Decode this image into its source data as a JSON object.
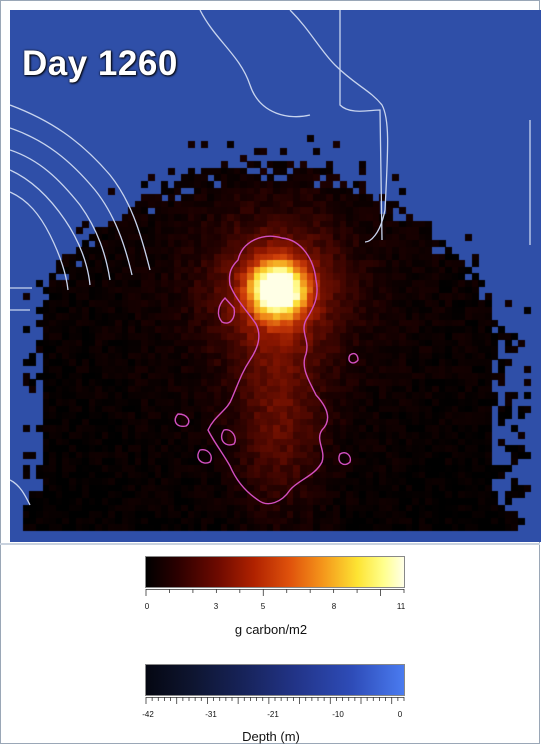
{
  "map": {
    "day_label": "Day 1260",
    "colors": {
      "water": "#2f4fa8",
      "bathymetry_contour": "#c8d4ee",
      "carbon_contour": "#d24fc0"
    }
  },
  "carbon_legend": {
    "title": "g carbon/m2",
    "ticks": [
      "0",
      "3",
      "5",
      "8",
      "11"
    ],
    "range": [
      0,
      11
    ],
    "colormap": [
      "#000000",
      "#6e0a00",
      "#e0530c",
      "#fde433",
      "#ffffe8"
    ]
  },
  "depth_legend": {
    "title": "Depth (m)",
    "ticks": [
      "-42",
      "-31",
      "-21",
      "-10",
      "0"
    ],
    "range": [
      -42,
      0
    ],
    "colormap": [
      "#050712",
      "#17235a",
      "#2e4cb8",
      "#4a7bf0"
    ]
  }
}
